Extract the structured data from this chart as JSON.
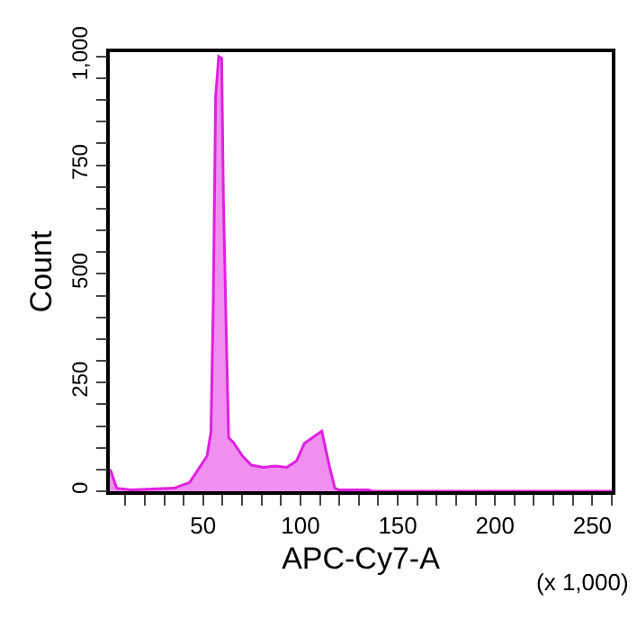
{
  "chart_data": {
    "type": "area",
    "xlabel": "APC-Cy7-A",
    "ylabel": "Count",
    "annotations": [
      "(x 1,000)"
    ],
    "x": [
      2,
      2.5,
      5.6,
      13,
      35,
      43,
      52,
      54,
      55.2,
      56.4,
      58,
      59.5,
      60.4,
      61.9,
      63.1,
      65.6,
      70.2,
      74.8,
      81,
      87,
      93,
      98,
      102,
      108.6,
      111,
      113,
      115,
      117.7,
      120,
      135,
      137,
      260
    ],
    "series": [
      {
        "color": "#e020e0",
        "values": [
          50,
          47,
          7,
          3,
          7,
          20,
          81,
          136,
          440,
          908,
          1000,
          996,
          673,
          357,
          123,
          112,
          81,
          60,
          55,
          58,
          55,
          70,
          110,
          131,
          138,
          96,
          55,
          7,
          3,
          3,
          0,
          0
        ]
      }
    ],
    "xlim": [
      2,
      260
    ],
    "ylim": [
      0,
      1010
    ],
    "xticks": [
      {
        "value": 10,
        "label": null
      },
      {
        "value": 20,
        "label": null
      },
      {
        "value": 30,
        "label": null
      },
      {
        "value": 40,
        "label": null
      },
      50,
      {
        "value": 60,
        "label": null
      },
      {
        "value": 70,
        "label": null
      },
      {
        "value": 80,
        "label": null
      },
      {
        "value": 90,
        "label": null
      },
      100,
      {
        "value": 110,
        "label": null
      },
      {
        "value": 120,
        "label": null
      },
      {
        "value": 130,
        "label": null
      },
      {
        "value": 140,
        "label": null
      },
      150,
      {
        "value": 160,
        "label": null
      },
      {
        "value": 170,
        "label": null
      },
      {
        "value": 180,
        "label": null
      },
      {
        "value": 190,
        "label": null
      },
      200,
      {
        "value": 210,
        "label": null
      },
      {
        "value": 220,
        "label": null
      },
      {
        "value": 230,
        "label": null
      },
      {
        "value": 240,
        "label": null
      },
      250,
      {
        "value": 260,
        "label": null
      }
    ],
    "yticks": [
      0,
      {
        "value": 50,
        "label": null
      },
      {
        "value": 100,
        "label": null
      },
      {
        "value": 150,
        "label": null
      },
      {
        "value": 200,
        "label": null
      },
      250,
      {
        "value": 300,
        "label": null
      },
      {
        "value": 350,
        "label": null
      },
      {
        "value": 400,
        "label": null
      },
      {
        "value": 450,
        "label": null
      },
      500,
      {
        "value": 550,
        "label": null
      },
      {
        "value": 600,
        "label": null
      },
      {
        "value": 650,
        "label": null
      },
      {
        "value": 700,
        "label": null
      },
      750,
      {
        "value": 800,
        "label": null
      },
      {
        "value": 850,
        "label": null
      },
      {
        "value": 900,
        "label": null
      },
      {
        "value": 950,
        "label": null
      },
      {
        "value": 1000,
        "label": "1,000"
      }
    ],
    "grid": false,
    "legend": false
  }
}
